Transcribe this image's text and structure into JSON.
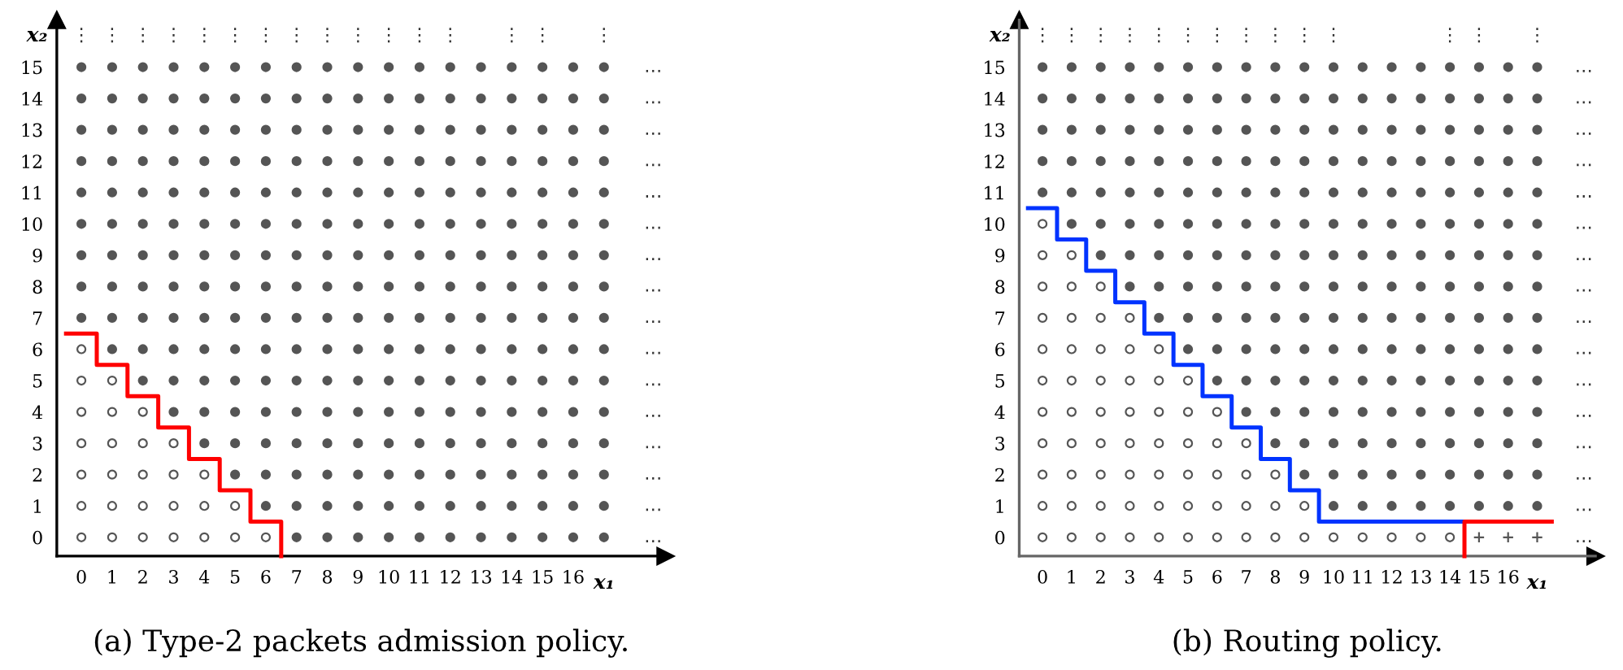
{
  "chart_data": [
    {
      "type": "scatter",
      "xlabel": "x₁",
      "ylabel": "x₂",
      "xlim": [
        -0.8,
        19.0
      ],
      "ylim": [
        -0.6,
        16.5
      ],
      "xticks": [
        0,
        1,
        2,
        3,
        4,
        5,
        6,
        7,
        8,
        9,
        10,
        11,
        12,
        13,
        14,
        15,
        16
      ],
      "yticks": [
        0,
        1,
        2,
        3,
        4,
        5,
        6,
        7,
        8,
        9,
        10,
        11,
        12,
        13,
        14,
        15
      ],
      "grid": false,
      "series": [
        {
          "type": "scatter",
          "marker": "circle",
          "color": "#ffffff",
          "x": [
            0,
            1,
            2,
            3,
            4,
            5,
            6,
            0,
            1,
            2,
            3,
            4,
            5,
            0,
            1,
            2,
            3,
            4,
            0,
            1,
            2,
            3,
            0,
            1,
            2,
            0,
            1,
            0
          ],
          "values": [
            0,
            0,
            0,
            0,
            0,
            0,
            0,
            1,
            1,
            1,
            1,
            1,
            1,
            2,
            2,
            2,
            2,
            2,
            3,
            3,
            3,
            3,
            4,
            4,
            4,
            5,
            5,
            6
          ]
        },
        {
          "type": "scatter",
          "marker": "circle",
          "color": "#555555",
          "x": [
            7,
            8,
            9,
            10,
            11,
            12,
            13,
            14,
            15,
            16,
            17
          ],
          "values": [
            0,
            0,
            0,
            0,
            0,
            0,
            0,
            0,
            0,
            0,
            0
          ]
        },
        {
          "type": "scatter",
          "marker": "circle",
          "color": "#555555",
          "x": [
            6,
            7,
            8,
            9,
            10,
            11,
            12,
            13,
            14,
            15,
            16,
            17
          ],
          "values": [
            1,
            1,
            1,
            1,
            1,
            1,
            1,
            1,
            1,
            1,
            1,
            1
          ]
        },
        {
          "type": "scatter",
          "marker": "circle",
          "color": "#555555",
          "x": [
            5,
            6,
            7,
            8,
            9,
            10,
            11,
            12,
            13,
            14,
            15,
            16,
            17
          ],
          "values": [
            2,
            2,
            2,
            2,
            2,
            2,
            2,
            2,
            2,
            2,
            2,
            2,
            2
          ]
        },
        {
          "type": "scatter",
          "marker": "circle",
          "color": "#555555",
          "x": [
            4,
            5,
            6,
            7,
            8,
            9,
            10,
            11,
            12,
            13,
            14,
            15,
            16,
            17
          ],
          "values": [
            3,
            3,
            3,
            3,
            3,
            3,
            3,
            3,
            3,
            3,
            3,
            3,
            3,
            3
          ]
        },
        {
          "type": "scatter",
          "marker": "circle",
          "color": "#555555",
          "x": [
            3,
            4,
            5,
            6,
            7,
            8,
            9,
            10,
            11,
            12,
            13,
            14,
            15,
            16,
            17
          ],
          "values": [
            4,
            4,
            4,
            4,
            4,
            4,
            4,
            4,
            4,
            4,
            4,
            4,
            4,
            4,
            4
          ]
        },
        {
          "type": "scatter",
          "marker": "circle",
          "color": "#555555",
          "x": [
            2,
            3,
            4,
            5,
            6,
            7,
            8,
            9,
            10,
            11,
            12,
            13,
            14,
            15,
            16,
            17
          ],
          "values": [
            5,
            5,
            5,
            5,
            5,
            5,
            5,
            5,
            5,
            5,
            5,
            5,
            5,
            5,
            5,
            5
          ]
        },
        {
          "type": "scatter",
          "marker": "circle",
          "color": "#555555",
          "x": [
            1,
            2,
            3,
            4,
            5,
            6,
            7,
            8,
            9,
            10,
            11,
            12,
            13,
            14,
            15,
            16,
            17
          ],
          "values": [
            6,
            6,
            6,
            6,
            6,
            6,
            6,
            6,
            6,
            6,
            6,
            6,
            6,
            6,
            6,
            6,
            6
          ]
        },
        {
          "type": "scatter",
          "marker": "circle",
          "color": "#555555",
          "x": [
            0,
            1,
            2,
            3,
            4,
            5,
            6,
            7,
            8,
            9,
            10,
            11,
            12,
            13,
            14,
            15,
            16,
            17
          ],
          "values": [
            7,
            7,
            7,
            7,
            7,
            7,
            7,
            7,
            7,
            7,
            7,
            7,
            7,
            7,
            7,
            7,
            7,
            7
          ]
        },
        {
          "type": "scatter",
          "marker": "circle",
          "color": "#555555",
          "x": [
            0,
            1,
            2,
            3,
            4,
            5,
            6,
            7,
            8,
            9,
            10,
            11,
            12,
            13,
            14,
            15,
            16,
            17
          ],
          "values": [
            8,
            8,
            8,
            8,
            8,
            8,
            8,
            8,
            8,
            8,
            8,
            8,
            8,
            8,
            8,
            8,
            8,
            8
          ]
        },
        {
          "type": "scatter",
          "marker": "circle",
          "color": "#555555",
          "x": [
            0,
            1,
            2,
            3,
            4,
            5,
            6,
            7,
            8,
            9,
            10,
            11,
            12,
            13,
            14,
            15,
            16,
            17
          ],
          "values": [
            9,
            9,
            9,
            9,
            9,
            9,
            9,
            9,
            9,
            9,
            9,
            9,
            9,
            9,
            9,
            9,
            9,
            9
          ]
        },
        {
          "type": "scatter",
          "marker": "circle",
          "color": "#555555",
          "x": [
            0,
            1,
            2,
            3,
            4,
            5,
            6,
            7,
            8,
            9,
            10,
            11,
            12,
            13,
            14,
            15,
            16,
            17
          ],
          "values": [
            10,
            10,
            10,
            10,
            10,
            10,
            10,
            10,
            10,
            10,
            10,
            10,
            10,
            10,
            10,
            10,
            10,
            10
          ]
        },
        {
          "type": "scatter",
          "marker": "circle",
          "color": "#555555",
          "x": [
            0,
            1,
            2,
            3,
            4,
            5,
            6,
            7,
            8,
            9,
            10,
            11,
            12,
            13,
            14,
            15,
            16,
            17
          ],
          "values": [
            11,
            11,
            11,
            11,
            11,
            11,
            11,
            11,
            11,
            11,
            11,
            11,
            11,
            11,
            11,
            11,
            11,
            11
          ]
        },
        {
          "type": "scatter",
          "marker": "circle",
          "color": "#555555",
          "x": [
            0,
            1,
            2,
            3,
            4,
            5,
            6,
            7,
            8,
            9,
            10,
            11,
            12,
            13,
            14,
            15,
            16,
            17
          ],
          "values": [
            12,
            12,
            12,
            12,
            12,
            12,
            12,
            12,
            12,
            12,
            12,
            12,
            12,
            12,
            12,
            12,
            12,
            12
          ]
        },
        {
          "type": "scatter",
          "marker": "circle",
          "color": "#555555",
          "x": [
            0,
            1,
            2,
            3,
            4,
            5,
            6,
            7,
            8,
            9,
            10,
            11,
            12,
            13,
            14,
            15,
            16,
            17
          ],
          "values": [
            13,
            13,
            13,
            13,
            13,
            13,
            13,
            13,
            13,
            13,
            13,
            13,
            13,
            13,
            13,
            13,
            13,
            13
          ]
        },
        {
          "type": "scatter",
          "marker": "circle",
          "color": "#555555",
          "x": [
            0,
            1,
            2,
            3,
            4,
            5,
            6,
            7,
            8,
            9,
            10,
            11,
            12,
            13,
            14,
            15,
            16,
            17
          ],
          "values": [
            14,
            14,
            14,
            14,
            14,
            14,
            14,
            14,
            14,
            14,
            14,
            14,
            14,
            14,
            14,
            14,
            14,
            14
          ]
        },
        {
          "type": "scatter",
          "marker": "circle",
          "color": "#555555",
          "x": [
            0,
            1,
            2,
            3,
            4,
            5,
            6,
            7,
            8,
            9,
            10,
            11,
            12,
            13,
            14,
            15,
            16,
            17
          ],
          "values": [
            15,
            15,
            15,
            15,
            15,
            15,
            15,
            15,
            15,
            15,
            15,
            15,
            15,
            15,
            15,
            15,
            15,
            15
          ]
        },
        {
          "type": "line",
          "color": "#ff0000",
          "x": [
            -0.5,
            0.5,
            0.5,
            1.5,
            1.5,
            2.5,
            2.5,
            3.5,
            3.5,
            4.5,
            4.5,
            5.5,
            5.5,
            6.5,
            6.5
          ],
          "values": [
            6.5,
            6.5,
            5.5,
            5.5,
            4.5,
            4.5,
            3.5,
            3.5,
            2.5,
            2.5,
            1.5,
            1.5,
            0.5,
            0.5,
            -0.6
          ]
        }
      ],
      "annotations": [
        {
          "text": "⋮",
          "x": 0,
          "y": 15
        },
        {
          "text": "⋮",
          "x": 1,
          "y": 15
        },
        {
          "text": "⋮",
          "x": 2,
          "y": 15
        },
        {
          "text": "⋮",
          "x": 3,
          "y": 15
        },
        {
          "text": "⋮",
          "x": 4,
          "y": 15
        },
        {
          "text": "⋮",
          "x": 5,
          "y": 15
        },
        {
          "text": "⋮",
          "x": 6,
          "y": 15
        },
        {
          "text": "⋮",
          "x": 7,
          "y": 15
        },
        {
          "text": "⋮",
          "x": 8,
          "y": 15
        },
        {
          "text": "⋮",
          "x": 9,
          "y": 15
        },
        {
          "text": "⋮",
          "x": 10,
          "y": 15
        },
        {
          "text": "⋮",
          "x": 11,
          "y": 15
        },
        {
          "text": "⋮",
          "x": 12,
          "y": 15
        },
        {
          "text": "⋮",
          "x": 14,
          "y": 15
        },
        {
          "text": "⋮",
          "x": 15,
          "y": 15
        },
        {
          "text": "⋮",
          "x": 17,
          "y": 15
        },
        {
          "text": "…",
          "x": 17,
          "y": 0
        },
        {
          "text": "…",
          "x": 17,
          "y": 1
        },
        {
          "text": "…",
          "x": 17,
          "y": 2
        },
        {
          "text": "…",
          "x": 17,
          "y": 3
        },
        {
          "text": "…",
          "x": 17,
          "y": 4
        },
        {
          "text": "…",
          "x": 17,
          "y": 5
        },
        {
          "text": "…",
          "x": 17,
          "y": 6
        },
        {
          "text": "…",
          "x": 17,
          "y": 7
        },
        {
          "text": "…",
          "x": 17,
          "y": 8
        },
        {
          "text": "…",
          "x": 17,
          "y": 9
        },
        {
          "text": "…",
          "x": 17,
          "y": 10
        },
        {
          "text": "…",
          "x": 17,
          "y": 11
        },
        {
          "text": "…",
          "x": 17,
          "y": 12
        },
        {
          "text": "…",
          "x": 17,
          "y": 13
        },
        {
          "text": "…",
          "x": 17,
          "y": 14
        },
        {
          "text": "…",
          "x": 17,
          "y": 15
        },
        "(a) Type-2 packets admission policy."
      ]
    },
    {
      "type": "scatter",
      "xlabel": "x₁",
      "ylabel": "x₂",
      "xlim": [
        -0.8,
        19.0
      ],
      "ylim": [
        -0.6,
        16.5
      ],
      "xticks": [
        0,
        1,
        2,
        3,
        4,
        5,
        6,
        7,
        8,
        9,
        10,
        11,
        12,
        13,
        14,
        15,
        16
      ],
      "yticks": [
        0,
        1,
        2,
        3,
        4,
        5,
        6,
        7,
        8,
        9,
        10,
        11,
        12,
        13,
        14,
        15
      ],
      "grid": false,
      "series": [
        {
          "type": "scatter",
          "marker": "circle",
          "color": "#ffffff",
          "x": [
            0,
            1,
            2,
            3,
            4,
            5,
            6,
            7,
            8,
            9,
            10,
            11,
            12,
            13,
            14,
            0,
            1,
            2,
            3,
            4,
            5,
            6,
            7,
            8,
            9,
            0,
            1,
            2,
            3,
            4,
            5,
            6,
            7,
            8,
            0,
            1,
            2,
            3,
            4,
            5,
            6,
            7,
            0,
            1,
            2,
            3,
            4,
            5,
            6,
            0,
            1,
            2,
            3,
            4,
            5,
            0,
            1,
            2,
            3,
            4,
            0,
            1,
            2,
            3,
            0,
            1,
            2,
            0,
            1,
            0
          ],
          "values": [
            0,
            0,
            0,
            0,
            0,
            0,
            0,
            0,
            0,
            0,
            0,
            0,
            0,
            0,
            0,
            1,
            1,
            1,
            1,
            1,
            1,
            1,
            1,
            1,
            1,
            2,
            2,
            2,
            2,
            2,
            2,
            2,
            2,
            2,
            3,
            3,
            3,
            3,
            3,
            3,
            3,
            3,
            4,
            4,
            4,
            4,
            4,
            4,
            4,
            5,
            5,
            5,
            5,
            5,
            5,
            6,
            6,
            6,
            6,
            6,
            7,
            7,
            7,
            7,
            8,
            8,
            8,
            9,
            9,
            10
          ]
        },
        {
          "type": "scatter",
          "marker": "cross",
          "color": "#555555",
          "x": [
            15,
            16,
            17
          ],
          "values": [
            0,
            0,
            0
          ]
        },
        {
          "type": "scatter",
          "marker": "circle",
          "color": "#555555",
          "x": [
            10,
            11,
            12,
            13,
            14,
            15,
            16,
            17
          ],
          "values": [
            1,
            1,
            1,
            1,
            1,
            1,
            1,
            1
          ]
        },
        {
          "type": "scatter",
          "marker": "circle",
          "color": "#555555",
          "x": [
            9,
            10,
            11,
            12,
            13,
            14,
            15,
            16,
            17
          ],
          "values": [
            2,
            2,
            2,
            2,
            2,
            2,
            2,
            2,
            2
          ]
        },
        {
          "type": "scatter",
          "marker": "circle",
          "color": "#555555",
          "x": [
            8,
            9,
            10,
            11,
            12,
            13,
            14,
            15,
            16,
            17
          ],
          "values": [
            3,
            3,
            3,
            3,
            3,
            3,
            3,
            3,
            3,
            3
          ]
        },
        {
          "type": "scatter",
          "marker": "circle",
          "color": "#555555",
          "x": [
            7,
            8,
            9,
            10,
            11,
            12,
            13,
            14,
            15,
            16,
            17
          ],
          "values": [
            4,
            4,
            4,
            4,
            4,
            4,
            4,
            4,
            4,
            4,
            4
          ]
        },
        {
          "type": "scatter",
          "marker": "circle",
          "color": "#555555",
          "x": [
            6,
            7,
            8,
            9,
            10,
            11,
            12,
            13,
            14,
            15,
            16,
            17
          ],
          "values": [
            5,
            5,
            5,
            5,
            5,
            5,
            5,
            5,
            5,
            5,
            5,
            5
          ]
        },
        {
          "type": "scatter",
          "marker": "circle",
          "color": "#555555",
          "x": [
            5,
            6,
            7,
            8,
            9,
            10,
            11,
            12,
            13,
            14,
            15,
            16,
            17
          ],
          "values": [
            6,
            6,
            6,
            6,
            6,
            6,
            6,
            6,
            6,
            6,
            6,
            6,
            6
          ]
        },
        {
          "type": "scatter",
          "marker": "circle",
          "color": "#555555",
          "x": [
            4,
            5,
            6,
            7,
            8,
            9,
            10,
            11,
            12,
            13,
            14,
            15,
            16,
            17
          ],
          "values": [
            7,
            7,
            7,
            7,
            7,
            7,
            7,
            7,
            7,
            7,
            7,
            7,
            7,
            7
          ]
        },
        {
          "type": "scatter",
          "marker": "circle",
          "color": "#555555",
          "x": [
            3,
            4,
            5,
            6,
            7,
            8,
            9,
            10,
            11,
            12,
            13,
            14,
            15,
            16,
            17
          ],
          "values": [
            8,
            8,
            8,
            8,
            8,
            8,
            8,
            8,
            8,
            8,
            8,
            8,
            8,
            8,
            8
          ]
        },
        {
          "type": "scatter",
          "marker": "circle",
          "color": "#555555",
          "x": [
            2,
            3,
            4,
            5,
            6,
            7,
            8,
            9,
            10,
            11,
            12,
            13,
            14,
            15,
            16,
            17
          ],
          "values": [
            9,
            9,
            9,
            9,
            9,
            9,
            9,
            9,
            9,
            9,
            9,
            9,
            9,
            9,
            9,
            9
          ]
        },
        {
          "type": "scatter",
          "marker": "circle",
          "color": "#555555",
          "x": [
            1,
            2,
            3,
            4,
            5,
            6,
            7,
            8,
            9,
            10,
            11,
            12,
            13,
            14,
            15,
            16,
            17
          ],
          "values": [
            10,
            10,
            10,
            10,
            10,
            10,
            10,
            10,
            10,
            10,
            10,
            10,
            10,
            10,
            10,
            10,
            10
          ]
        },
        {
          "type": "scatter",
          "marker": "circle",
          "color": "#555555",
          "x": [
            0,
            1,
            2,
            3,
            4,
            5,
            6,
            7,
            8,
            9,
            10,
            11,
            12,
            13,
            14,
            15,
            16,
            17
          ],
          "values": [
            11,
            11,
            11,
            11,
            11,
            11,
            11,
            11,
            11,
            11,
            11,
            11,
            11,
            11,
            11,
            11,
            11,
            11
          ]
        },
        {
          "type": "scatter",
          "marker": "circle",
          "color": "#555555",
          "x": [
            0,
            1,
            2,
            3,
            4,
            5,
            6,
            7,
            8,
            9,
            10,
            11,
            12,
            13,
            14,
            15,
            16,
            17
          ],
          "values": [
            12,
            12,
            12,
            12,
            12,
            12,
            12,
            12,
            12,
            12,
            12,
            12,
            12,
            12,
            12,
            12,
            12,
            12
          ]
        },
        {
          "type": "scatter",
          "marker": "circle",
          "color": "#555555",
          "x": [
            0,
            1,
            2,
            3,
            4,
            5,
            6,
            7,
            8,
            9,
            10,
            11,
            12,
            13,
            14,
            15,
            16,
            17
          ],
          "values": [
            13,
            13,
            13,
            13,
            13,
            13,
            13,
            13,
            13,
            13,
            13,
            13,
            13,
            13,
            13,
            13,
            13,
            13
          ]
        },
        {
          "type": "scatter",
          "marker": "circle",
          "color": "#555555",
          "x": [
            0,
            1,
            2,
            3,
            4,
            5,
            6,
            7,
            8,
            9,
            10,
            11,
            12,
            13,
            14,
            15,
            16,
            17
          ],
          "values": [
            14,
            14,
            14,
            14,
            14,
            14,
            14,
            14,
            14,
            14,
            14,
            14,
            14,
            14,
            14,
            14,
            14,
            14
          ]
        },
        {
          "type": "scatter",
          "marker": "circle",
          "color": "#555555",
          "x": [
            0,
            1,
            2,
            3,
            4,
            5,
            6,
            7,
            8,
            9,
            10,
            11,
            12,
            13,
            14,
            15,
            16,
            17
          ],
          "values": [
            15,
            15,
            15,
            15,
            15,
            15,
            15,
            15,
            15,
            15,
            15,
            15,
            15,
            15,
            15,
            15,
            15,
            15
          ]
        },
        {
          "type": "line",
          "color": "#0033ff",
          "x": [
            -0.5,
            0.5,
            0.5,
            1.5,
            1.5,
            2.5,
            2.5,
            3.5,
            3.5,
            4.5,
            4.5,
            5.5,
            5.5,
            6.5,
            6.5,
            7.5,
            7.5,
            8.5,
            8.5,
            9.5,
            9.5,
            14.5
          ],
          "values": [
            10.5,
            10.5,
            9.5,
            9.5,
            8.5,
            8.5,
            7.5,
            7.5,
            6.5,
            6.5,
            5.5,
            5.5,
            4.5,
            4.5,
            3.5,
            3.5,
            2.5,
            2.5,
            1.5,
            1.5,
            0.5,
            0.5
          ]
        },
        {
          "type": "line",
          "color": "#ff0000",
          "x": [
            14.5,
            14.5,
            17.5
          ],
          "values": [
            -0.6,
            0.5,
            0.5
          ]
        }
      ],
      "annotations": [
        {
          "text": "⋮",
          "x": 0,
          "y": 15
        },
        {
          "text": "⋮",
          "x": 1,
          "y": 15
        },
        {
          "text": "⋮",
          "x": 2,
          "y": 15
        },
        {
          "text": "⋮",
          "x": 3,
          "y": 15
        },
        {
          "text": "⋮",
          "x": 4,
          "y": 15
        },
        {
          "text": "⋮",
          "x": 5,
          "y": 15
        },
        {
          "text": "⋮",
          "x": 6,
          "y": 15
        },
        {
          "text": "⋮",
          "x": 7,
          "y": 15
        },
        {
          "text": "⋮",
          "x": 8,
          "y": 15
        },
        {
          "text": "⋮",
          "x": 9,
          "y": 15
        },
        {
          "text": "⋮",
          "x": 10,
          "y": 15
        },
        {
          "text": "⋮",
          "x": 14,
          "y": 15
        },
        {
          "text": "⋮",
          "x": 15,
          "y": 15
        },
        {
          "text": "⋮",
          "x": 17,
          "y": 15
        },
        {
          "text": "…",
          "x": 17,
          "y": 0
        },
        {
          "text": "…",
          "x": 17,
          "y": 1
        },
        {
          "text": "…",
          "x": 17,
          "y": 2
        },
        {
          "text": "…",
          "x": 17,
          "y": 3
        },
        {
          "text": "…",
          "x": 17,
          "y": 4
        },
        {
          "text": "…",
          "x": 17,
          "y": 5
        },
        {
          "text": "…",
          "x": 17,
          "y": 6
        },
        {
          "text": "…",
          "x": 17,
          "y": 7
        },
        {
          "text": "…",
          "x": 17,
          "y": 8
        },
        {
          "text": "…",
          "x": 17,
          "y": 9
        },
        {
          "text": "…",
          "x": 17,
          "y": 10
        },
        {
          "text": "…",
          "x": 17,
          "y": 11
        },
        {
          "text": "…",
          "x": 17,
          "y": 12
        },
        {
          "text": "…",
          "x": 17,
          "y": 13
        },
        {
          "text": "…",
          "x": 17,
          "y": 14
        },
        {
          "text": "…",
          "x": 17,
          "y": 15
        },
        "(b) Routing policy."
      ]
    }
  ]
}
